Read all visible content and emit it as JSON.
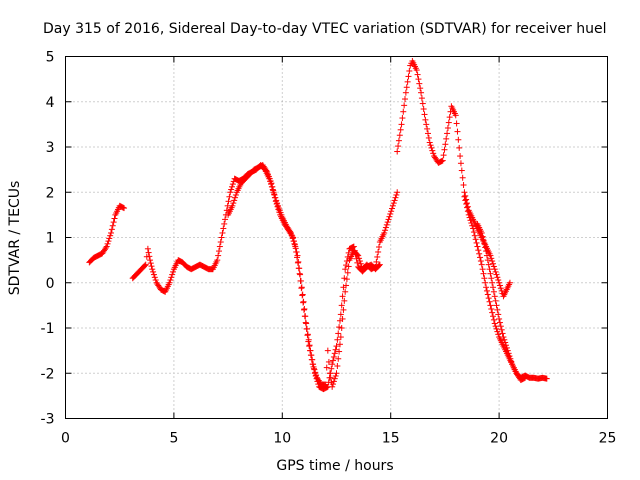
{
  "chart_data": {
    "type": "scatter",
    "title": "Day 315 of 2016, Sidereal Day-to-day VTEC variation (SDTVAR) for receiver huel",
    "xlabel": "GPS time / hours",
    "ylabel": "SDTVAR / TECUs",
    "xlim": [
      0,
      25
    ],
    "ylim": [
      -3,
      5
    ],
    "xticks": [
      0,
      5,
      10,
      15,
      20,
      25
    ],
    "yticks": [
      -3,
      -2,
      -1,
      0,
      1,
      2,
      3,
      4,
      5
    ],
    "xtick_labels": [
      "0",
      "5",
      "10",
      "15",
      "20",
      "25"
    ],
    "ytick_labels": [
      "-3",
      "-2",
      "-1",
      "0",
      "1",
      "2",
      "3",
      "4",
      "5"
    ],
    "grid": true,
    "marker": "+",
    "color": "#ff0000",
    "series": [
      {
        "name": "SDTVAR",
        "segments": [
          [
            [
              1.1,
              0.45
            ],
            [
              1.3,
              0.55
            ],
            [
              1.5,
              0.6
            ],
            [
              1.7,
              0.65
            ],
            [
              1.9,
              0.8
            ],
            [
              2.1,
              1.1
            ],
            [
              2.3,
              1.5
            ],
            [
              2.5,
              1.7
            ],
            [
              2.7,
              1.65
            ]
          ],
          [
            [
              3.1,
              0.1
            ],
            [
              3.3,
              0.2
            ],
            [
              3.5,
              0.3
            ],
            [
              3.7,
              0.4
            ],
            [
              3.8,
              0.75
            ],
            [
              3.9,
              0.5
            ],
            [
              4.0,
              0.3
            ],
            [
              4.2,
              0.0
            ],
            [
              4.4,
              -0.15
            ],
            [
              4.6,
              -0.2
            ],
            [
              4.8,
              0.0
            ],
            [
              5.0,
              0.3
            ],
            [
              5.2,
              0.5
            ],
            [
              5.4,
              0.45
            ],
            [
              5.6,
              0.35
            ],
            [
              5.8,
              0.3
            ],
            [
              6.0,
              0.35
            ],
            [
              6.2,
              0.4
            ],
            [
              6.4,
              0.35
            ],
            [
              6.6,
              0.3
            ],
            [
              6.8,
              0.3
            ],
            [
              7.0,
              0.5
            ],
            [
              7.2,
              1.0
            ],
            [
              7.4,
              1.5
            ],
            [
              7.6,
              2.0
            ],
            [
              7.8,
              2.3
            ],
            [
              8.0,
              2.25
            ],
            [
              8.2,
              2.3
            ],
            [
              8.4,
              2.4
            ],
            [
              8.6,
              2.45
            ],
            [
              8.8,
              2.5
            ],
            [
              9.0,
              2.6
            ],
            [
              9.2,
              2.5
            ],
            [
              9.4,
              2.3
            ],
            [
              9.6,
              2.0
            ],
            [
              9.8,
              1.7
            ],
            [
              10.0,
              1.45
            ],
            [
              10.2,
              1.25
            ],
            [
              10.4,
              1.1
            ],
            [
              10.6,
              0.8
            ],
            [
              10.8,
              0.2
            ],
            [
              11.0,
              -0.6
            ],
            [
              11.2,
              -1.3
            ],
            [
              11.4,
              -1.8
            ],
            [
              11.6,
              -2.1
            ],
            [
              11.8,
              -2.25
            ],
            [
              12.0,
              -2.25
            ],
            [
              12.1,
              -1.5
            ],
            [
              12.2,
              -2.0
            ],
            [
              12.3,
              -2.3
            ],
            [
              12.5,
              -2.0
            ],
            [
              12.7,
              -1.2
            ],
            [
              12.9,
              -0.2
            ],
            [
              13.1,
              0.5
            ],
            [
              13.3,
              0.7
            ],
            [
              13.5,
              0.6
            ],
            [
              13.7,
              0.3
            ],
            [
              13.9,
              0.4
            ],
            [
              14.1,
              0.3
            ],
            [
              14.3,
              0.35
            ],
            [
              14.5,
              0.9
            ],
            [
              14.7,
              1.1
            ],
            [
              14.9,
              1.4
            ],
            [
              15.1,
              1.7
            ],
            [
              15.3,
              2.0
            ]
          ],
          [
            [
              7.5,
              1.5
            ],
            [
              7.7,
              1.7
            ],
            [
              7.9,
              2.0
            ],
            [
              8.1,
              2.2
            ],
            [
              8.3,
              2.3
            ],
            [
              8.5,
              2.4
            ],
            [
              8.7,
              2.5
            ],
            [
              8.9,
              2.55
            ],
            [
              9.1,
              2.6
            ],
            [
              9.3,
              2.45
            ],
            [
              9.5,
              2.2
            ],
            [
              9.7,
              1.8
            ],
            [
              9.9,
              1.5
            ],
            [
              10.1,
              1.3
            ],
            [
              10.3,
              1.15
            ],
            [
              10.5,
              1.0
            ],
            [
              10.7,
              0.6
            ],
            [
              10.9,
              -0.1
            ],
            [
              11.1,
              -0.9
            ],
            [
              11.3,
              -1.5
            ],
            [
              11.5,
              -2.0
            ],
            [
              11.7,
              -2.3
            ],
            [
              11.9,
              -2.35
            ],
            [
              12.1,
              -2.3
            ],
            [
              12.3,
              -1.8
            ],
            [
              12.5,
              -1.4
            ],
            [
              12.7,
              -0.7
            ],
            [
              12.9,
              0.3
            ],
            [
              13.1,
              0.75
            ],
            [
              13.3,
              0.8
            ],
            [
              13.5,
              0.35
            ],
            [
              13.7,
              0.25
            ],
            [
              13.9,
              0.35
            ],
            [
              14.1,
              0.4
            ],
            [
              14.3,
              0.3
            ],
            [
              14.5,
              0.4
            ]
          ],
          [
            [
              15.3,
              2.9
            ],
            [
              15.5,
              3.5
            ],
            [
              15.7,
              4.2
            ],
            [
              15.9,
              4.8
            ],
            [
              16.0,
              4.9
            ],
            [
              16.2,
              4.7
            ],
            [
              16.4,
              4.2
            ],
            [
              16.6,
              3.6
            ],
            [
              16.8,
              3.1
            ],
            [
              17.0,
              2.8
            ],
            [
              17.2,
              2.65
            ],
            [
              17.4,
              2.7
            ],
            [
              17.6,
              3.3
            ],
            [
              17.8,
              3.9
            ],
            [
              18.0,
              3.7
            ],
            [
              18.2,
              2.8
            ],
            [
              18.4,
              2.0
            ],
            [
              18.6,
              1.6
            ],
            [
              18.8,
              1.4
            ],
            [
              19.0,
              1.2
            ],
            [
              19.2,
              1.0
            ],
            [
              19.4,
              0.8
            ],
            [
              19.6,
              0.6
            ],
            [
              19.8,
              0.3
            ],
            [
              20.0,
              0.0
            ],
            [
              20.2,
              -0.3
            ],
            [
              20.5,
              0.0
            ]
          ],
          [
            [
              18.4,
              1.9
            ],
            [
              18.6,
              1.5
            ],
            [
              18.8,
              1.2
            ],
            [
              19.0,
              0.8
            ],
            [
              19.2,
              0.4
            ],
            [
              19.4,
              -0.1
            ],
            [
              19.6,
              -0.5
            ],
            [
              19.8,
              -0.9
            ],
            [
              20.0,
              -1.2
            ],
            [
              20.2,
              -1.4
            ],
            [
              20.4,
              -1.6
            ],
            [
              20.6,
              -1.8
            ],
            [
              20.8,
              -2.0
            ],
            [
              21.0,
              -2.1
            ],
            [
              21.2,
              -2.05
            ],
            [
              21.4,
              -2.1
            ],
            [
              21.6,
              -2.1
            ],
            [
              21.8,
              -2.12
            ],
            [
              22.0,
              -2.1
            ],
            [
              22.2,
              -2.12
            ]
          ],
          [
            [
              19.0,
              1.3
            ],
            [
              19.2,
              1.1
            ],
            [
              19.4,
              0.7
            ],
            [
              19.6,
              0.2
            ],
            [
              19.8,
              -0.3
            ],
            [
              20.0,
              -0.8
            ],
            [
              20.2,
              -1.2
            ],
            [
              20.4,
              -1.5
            ],
            [
              20.6,
              -1.8
            ],
            [
              20.8,
              -2.0
            ],
            [
              21.0,
              -2.15
            ],
            [
              21.2,
              -2.1
            ]
          ]
        ]
      }
    ]
  }
}
